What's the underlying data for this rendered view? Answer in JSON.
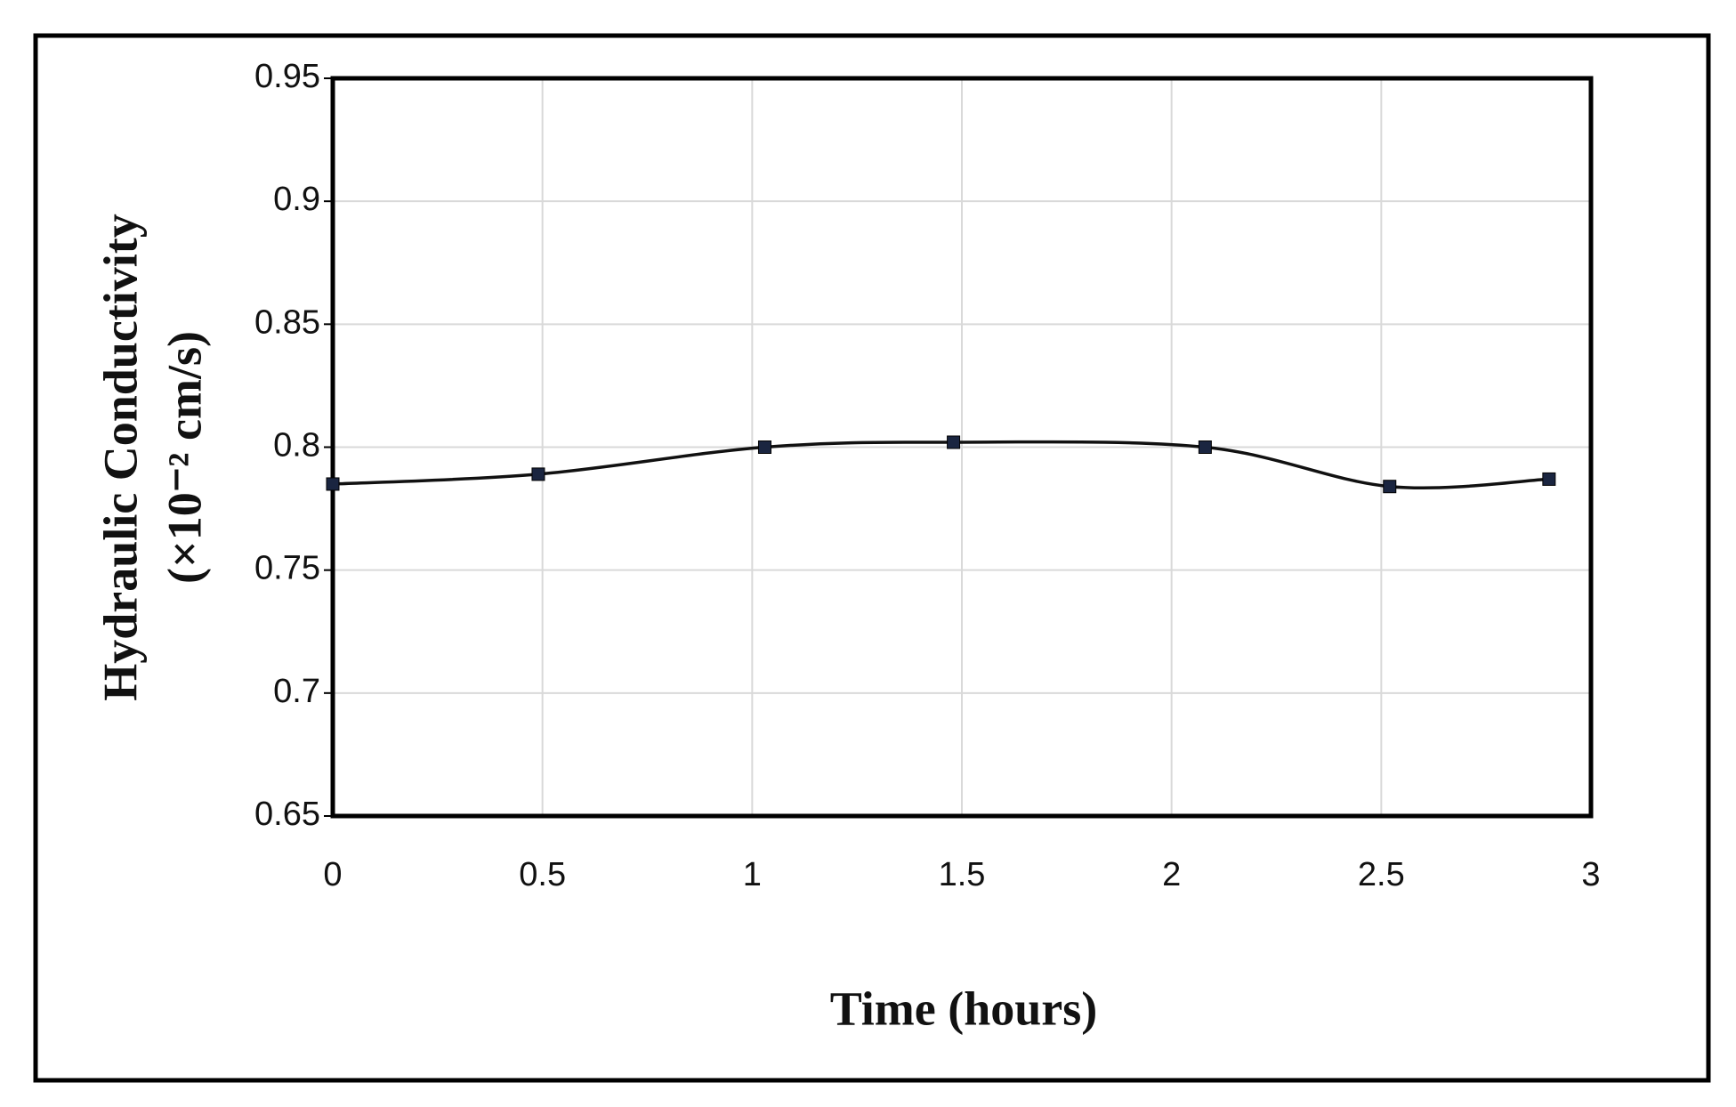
{
  "chart_data": {
    "type": "line",
    "xlabel": "Time (hours)",
    "ylabel": [
      "Hydraulic Conductivity",
      "(×10⁻² cm/s)"
    ],
    "x": [
      0,
      0.49,
      1.03,
      1.48,
      2.08,
      2.52,
      2.9
    ],
    "series": [
      {
        "color": "#111111",
        "marker_color": "#1a2540",
        "values": [
          0.785,
          0.789,
          0.8,
          0.802,
          0.8,
          0.784,
          0.787
        ]
      }
    ],
    "xlim": [
      0,
      3
    ],
    "xticks": [
      0,
      0.5,
      1,
      1.5,
      2,
      2.5,
      3
    ],
    "ylim": [
      0.65,
      0.95
    ],
    "yticks": [
      0.65,
      0.7,
      0.75,
      0.8,
      0.85,
      0.9,
      0.95
    ],
    "grid": true,
    "smooth": true
  }
}
